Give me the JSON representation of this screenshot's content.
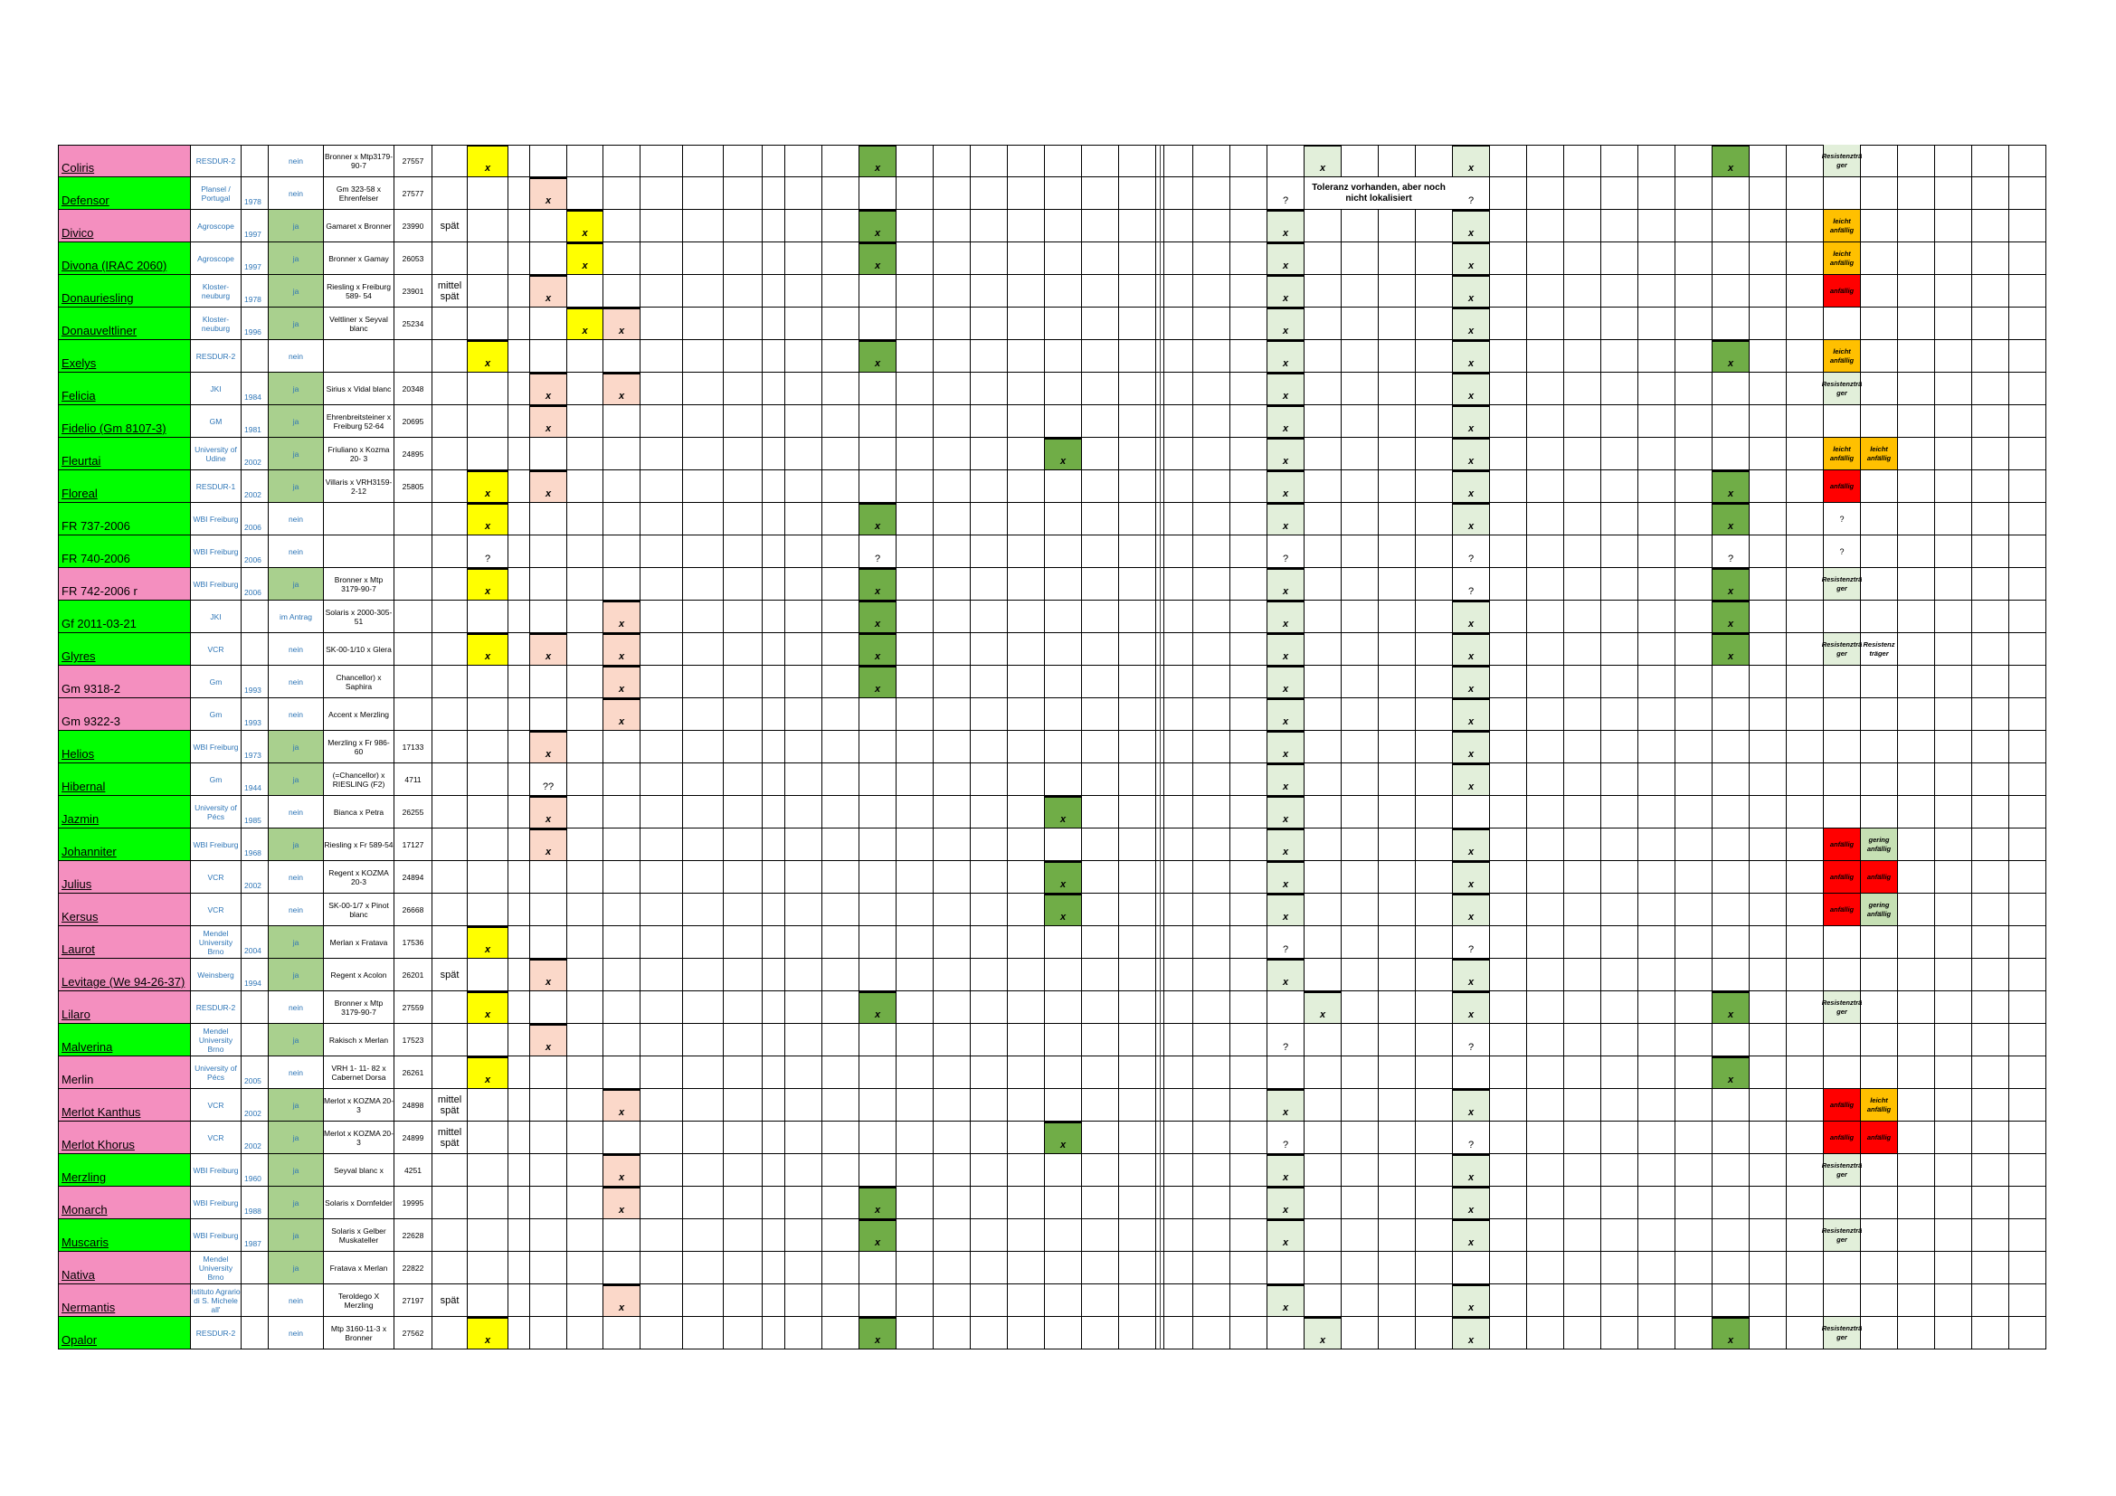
{
  "colors": {
    "pink": "#f48fbf",
    "green": "#00ff00",
    "lightgreen": "#a9d08e",
    "yellow": "#ffff00",
    "peach": "#fbd8c9",
    "midgreen": "#70ad47",
    "pale": "#e2efda",
    "orange": "#ffc000",
    "red": "#ff0000",
    "sage": "#c6e0b4"
  },
  "note": "Toleranz vorhanden, aber noch nicht lokalisiert",
  "rows": [
    {
      "name": "Coliris",
      "color": "pink",
      "org": "RESDUR-2",
      "year": "",
      "ja": "nein",
      "parent": "Bronner x Mtp3179-90-7",
      "num": "27557",
      "late": "",
      "c": {
        "yellow": "x",
        "mid1": "x",
        "pale1": "x",
        "pale2": "x",
        "mid2": "x"
      },
      "r1": "Resistenzträ ger",
      "r1c": "pale"
    },
    {
      "name": "Defensor",
      "color": "green",
      "org": "Plansel / Portugal",
      "year": "1978",
      "ja": "nein",
      "parent": "Gm 323-58 x Ehrenfelser",
      "num": "27577",
      "late": "",
      "c": {
        "peach1": "x",
        "q1": "?",
        "q2": "?"
      },
      "note": true
    },
    {
      "name": "Divico",
      "color": "pink",
      "org": "Agroscope",
      "year": "1997",
      "ja": "ja",
      "parent": "Gamaret x Bronner",
      "num": "23990",
      "late": "spät",
      "c": {
        "yellow2": "x",
        "mid1": "x",
        "pale0": "x",
        "pale2": "x"
      },
      "r1": "leicht anfällig",
      "r1c": "orange"
    },
    {
      "name": "Divona (IRAC 2060)",
      "color": "green",
      "org": "Agroscope",
      "year": "1997",
      "ja": "ja",
      "parent": "Bronner x Gamay",
      "num": "26053",
      "late": "",
      "c": {
        "yellow2": "x",
        "mid1": "x",
        "pale0": "x",
        "pale2": "x"
      },
      "r1": "leicht anfällig",
      "r1c": "orange"
    },
    {
      "name": "Donauriesling",
      "color": "green",
      "org": "Kloster- neuburg",
      "year": "1978",
      "ja": "ja",
      "parent": "Riesling x Freiburg 589- 54",
      "num": "23901",
      "late": "mittel spät",
      "c": {
        "peach1": "x",
        "pale0": "x",
        "pale2": "x"
      },
      "r1": "anfällig",
      "r1c": "red"
    },
    {
      "name": "Donauveltliner",
      "color": "green",
      "org": "Kloster- neuburg",
      "year": "1996",
      "ja": "ja",
      "parent": "Veltliner x Seyval blanc",
      "num": "25234",
      "late": "",
      "c": {
        "yellow2": "x",
        "peach2": "x",
        "pale0": "x",
        "pale2": "x"
      }
    },
    {
      "name": "Exelys",
      "color": "green",
      "org": "RESDUR-2",
      "year": "",
      "ja": "nein",
      "parent": "",
      "num": "",
      "late": "",
      "c": {
        "yellow": "x",
        "mid1": "x",
        "pale0": "x",
        "pale2": "x",
        "mid2": "x"
      },
      "r1": "leicht anfällig",
      "r1c": "orange"
    },
    {
      "name": "Felicia",
      "color": "green",
      "org": "JKI",
      "year": "1984",
      "ja": "ja",
      "parent": "Sirius x Vidal blanc",
      "num": "20348",
      "late": "",
      "c": {
        "peach1": "x",
        "peach2": "x",
        "pale0": "x",
        "pale2": "x"
      },
      "r1": "Resistenzträ ger",
      "r1c": "pale"
    },
    {
      "name": "Fidelio (Gm 8107-3)",
      "color": "green",
      "org": "GM",
      "year": "1981",
      "ja": "ja",
      "parent": "Ehrenbreitsteiner x Freiburg 52-64",
      "num": "20695",
      "late": "",
      "c": {
        "peach1": "x",
        "pale0": "x",
        "pale2": "x"
      }
    },
    {
      "name": "Fleurtai",
      "color": "green",
      "org": "University of Udine",
      "year": "2002",
      "ja": "ja",
      "parent": "Friuliano x Kozma 20- 3",
      "num": "24895",
      "late": "",
      "c": {
        "mid3": "x",
        "pale0": "x",
        "pale2": "x"
      },
      "r1": "leicht anfällig",
      "r1c": "orange",
      "r2": "leicht anfällig",
      "r2c": "orange"
    },
    {
      "name": "Floreal",
      "color": "green",
      "org": "RESDUR-1",
      "year": "2002",
      "ja": "ja",
      "parent": "Villaris x VRH3159-2-12",
      "num": "25805",
      "late": "",
      "c": {
        "yellow": "x",
        "peach1": "x",
        "pale0": "x",
        "pale2": "x",
        "mid2": "x"
      },
      "r1": "anfällig",
      "r1c": "red"
    },
    {
      "name": "FR 737-2006",
      "color": "green",
      "org": "WBI Freiburg",
      "year": "2006",
      "ja": "nein",
      "parent": "",
      "num": "",
      "late": "",
      "plain": true,
      "c": {
        "yellow": "x",
        "mid1": "x",
        "pale0": "x",
        "pale2": "x",
        "mid2": "x"
      },
      "r1": "?",
      "r1c": "none"
    },
    {
      "name": "FR 740-2006",
      "color": "green",
      "org": "WBI Freiburg",
      "year": "2006",
      "ja": "nein",
      "parent": "",
      "num": "",
      "late": "",
      "plain": true,
      "c": {
        "qy": "?",
        "qm": "?",
        "q1": "?",
        "q2": "?",
        "q3": "?"
      },
      "r1": "?",
      "r1c": "none"
    },
    {
      "name": "FR 742-2006 r",
      "color": "pink",
      "org": "WBI Freiburg",
      "year": "2006",
      "ja": "ja",
      "parent": "Bronner x Mtp 3179-90-7",
      "num": "",
      "late": "",
      "plain": true,
      "c": {
        "yellow": "x",
        "mid1": "x",
        "pale0": "x",
        "q2": "?",
        "mid2": "x"
      },
      "r1": "Resistenzträ ger",
      "r1c": "pale"
    },
    {
      "name": "Gf 2011-03-21",
      "color": "green",
      "org": "JKI",
      "year": "",
      "ja": "im Antrag",
      "parent": "Solaris x 2000-305-51",
      "num": "",
      "late": "",
      "plain": true,
      "c": {
        "peach2": "x",
        "mid1": "x",
        "pale0": "x",
        "pale2": "x",
        "mid2": "x"
      }
    },
    {
      "name": "Glyres",
      "color": "green",
      "org": "VCR",
      "year": "",
      "ja": "nein",
      "parent": "SK-00-1/10 x Glera",
      "num": "",
      "late": "",
      "c": {
        "yellow": "x",
        "peach1": "x",
        "peach2": "x",
        "mid1": "x",
        "pale0": "x",
        "pale2": "x",
        "mid2": "x"
      },
      "r1": "Resistenzträ ger",
      "r1c": "pale",
      "r2": "Resistenz träger",
      "r2c": "none"
    },
    {
      "name": "Gm 9318-2",
      "color": "pink",
      "org": "Gm",
      "year": "1993",
      "ja": "nein",
      "parent": "Chancellor) x Saphira",
      "num": "",
      "late": "",
      "plain": true,
      "c": {
        "peach2": "x",
        "mid1": "x",
        "pale0": "x",
        "pale2": "x"
      }
    },
    {
      "name": "Gm 9322-3",
      "color": "pink",
      "org": "Gm",
      "year": "1993",
      "ja": "nein",
      "parent": "Accent x   Merzling",
      "num": "",
      "late": "",
      "plain": true,
      "c": {
        "peach2": "x",
        "pale0": "x",
        "pale2": "x"
      }
    },
    {
      "name": "Helios",
      "color": "green",
      "org": "WBI Freiburg",
      "year": "1973",
      "ja": "ja",
      "parent": "Merzling x Fr 986- 60",
      "num": "17133",
      "late": "",
      "c": {
        "peach1": "x",
        "pale0": "x",
        "pale2": "x"
      }
    },
    {
      "name": "Hibernal",
      "color": "green",
      "org": "Gm",
      "year": "1944",
      "ja": "ja",
      "parent": "(=Chancellor) x RIESLING (F2)",
      "num": "4711",
      "late": "",
      "c": {
        "qq": "??",
        "pale0": "x",
        "pale2": "x"
      }
    },
    {
      "name": "Jazmin",
      "color": "green",
      "org": "University of Pécs",
      "year": "1985",
      "ja": "nein",
      "parent": "Bianca x Petra",
      "num": "26255",
      "late": "",
      "c": {
        "peach1": "x",
        "mid3": "x",
        "pale0": "x"
      }
    },
    {
      "name": "Johanniter",
      "color": "green",
      "org": "WBI Freiburg",
      "year": "1968",
      "ja": "ja",
      "parent": "Riesling x Fr 589-54",
      "num": "17127",
      "late": "",
      "c": {
        "peach1": "x",
        "pale0": "x",
        "pale2": "x"
      },
      "r1": "anfällig",
      "r1c": "red",
      "r2": "gering anfällig",
      "r2c": "sage"
    },
    {
      "name": "Julius",
      "color": "pink",
      "org": "VCR",
      "year": "2002",
      "ja": "nein",
      "parent": "Regent x KOZMA 20-3",
      "num": "24894",
      "late": "",
      "c": {
        "mid3": "x",
        "pale0": "x",
        "pale2": "x"
      },
      "r1": "anfällig",
      "r1c": "red",
      "r2": "anfällig",
      "r2c": "red"
    },
    {
      "name": "Kersus",
      "color": "pink",
      "org": "VCR",
      "year": "",
      "ja": "nein",
      "parent": "SK-00-1/7 x Pinot blanc",
      "num": "26668",
      "late": "",
      "c": {
        "mid3": "x",
        "pale0": "x",
        "pale2": "x"
      },
      "r1": "anfällig",
      "r1c": "red",
      "r2": "gering anfällig",
      "r2c": "sage"
    },
    {
      "name": "Laurot",
      "color": "pink",
      "org": "Mendel University Brno",
      "year": "2004",
      "ja": "ja",
      "parent": "Merlan x Fratava",
      "num": "17536",
      "late": "",
      "c": {
        "yellow": "x",
        "q1": "?",
        "q2": "?"
      }
    },
    {
      "name": "Levitage (We 94-26-37)",
      "color": "pink",
      "org": "Weinsberg",
      "year": "1994",
      "ja": "ja",
      "parent": "Regent x Acolon",
      "num": "26201",
      "late": "spät",
      "c": {
        "peach1": "x",
        "pale0": "x",
        "pale2": "x"
      }
    },
    {
      "name": "Lilaro",
      "color": "pink",
      "org": "RESDUR-2",
      "year": "",
      "ja": "nein",
      "parent": "Bronner x Mtp 3179-90-7",
      "num": "27559",
      "late": "",
      "c": {
        "yellow": "x",
        "mid1": "x",
        "pale1": "x",
        "pale2": "x",
        "mid2": "x"
      },
      "r1": "Resistenzträ ger",
      "r1c": "pale"
    },
    {
      "name": "Malverina",
      "color": "green",
      "org": "Mendel University Brno",
      "year": "",
      "ja": "ja",
      "parent": "Rakisch x Merlan",
      "num": "17523",
      "late": "",
      "c": {
        "peach1": "x",
        "q1": "?",
        "q2": "?"
      }
    },
    {
      "name": "Merlin",
      "color": "pink",
      "org": "University of Pécs",
      "year": "2005",
      "ja": "nein",
      "parent": "VRH 1- 11- 82 x Cabernet Dorsa",
      "num": "26261",
      "late": "",
      "plain": true,
      "c": {
        "yellow": "x",
        "mid2": "x"
      }
    },
    {
      "name": "Merlot Kanthus",
      "color": "pink",
      "org": "VCR",
      "year": "2002",
      "ja": "ja",
      "parent": "Merlot x KOZMA 20-3",
      "num": "24898",
      "late": "mittel spät",
      "c": {
        "peach2": "x",
        "pale0": "x",
        "pale2": "x"
      },
      "r1": "anfällig",
      "r1c": "red",
      "r2": "leicht anfällig",
      "r2c": "orange"
    },
    {
      "name": "Merlot Khorus",
      "color": "pink",
      "org": "VCR",
      "year": "2002",
      "ja": "ja",
      "parent": "Merlot x KOZMA 20-3",
      "num": "24899",
      "late": "mittel spät",
      "c": {
        "mid3": "x",
        "q1": "?",
        "q2": "?"
      },
      "r1": "anfällig",
      "r1c": "red",
      "r2": "anfällig",
      "r2c": "red"
    },
    {
      "name": "Merzling",
      "color": "green",
      "org": "WBI Freiburg",
      "year": "1960",
      "ja": "ja",
      "parent": "Seyval blanc x",
      "num": "4251",
      "late": "",
      "c": {
        "peach2": "x",
        "pale0": "x",
        "pale2": "x"
      },
      "r1": "Resistenzträ ger",
      "r1c": "pale"
    },
    {
      "name": "Monarch",
      "color": "pink",
      "org": "WBI Freiburg",
      "year": "1988",
      "ja": "ja",
      "parent": "Solaris x Dornfelder",
      "num": "19995",
      "late": "",
      "c": {
        "peach2": "x",
        "mid1": "x",
        "pale0": "x",
        "pale2": "x"
      }
    },
    {
      "name": "Muscaris",
      "color": "green",
      "org": "WBI Freiburg",
      "year": "1987",
      "ja": "ja",
      "parent": "Solaris x  Gelber Muskateller",
      "num": "22628",
      "late": "",
      "c": {
        "mid1": "x",
        "pale0": "x",
        "pale2": "x"
      },
      "r1": "Resistenzträ ger",
      "r1c": "pale"
    },
    {
      "name": "Nativa",
      "color": "pink",
      "org": "Mendel University Brno",
      "year": "",
      "ja": "ja",
      "parent": "Fratava x Merlan",
      "num": "22822",
      "late": "",
      "c": {}
    },
    {
      "name": "Nermantis",
      "color": "pink",
      "org": "Istituto Agrario di S. Michele all'",
      "year": "",
      "ja": "nein",
      "parent": "Teroldego X Merzling",
      "num": "27197",
      "late": "spät",
      "c": {
        "peach2": "x",
        "pale0": "x",
        "pale2": "x"
      }
    },
    {
      "name": "Opalor",
      "color": "green",
      "org": "RESDUR-2",
      "year": "",
      "ja": "nein",
      "parent": "Mtp 3160-11-3 x Bronner",
      "num": "27562",
      "late": "",
      "c": {
        "yellow": "x",
        "mid1": "x",
        "pale1": "x",
        "pale2": "x",
        "mid2": "x"
      },
      "r1": "Resistenzträ ger",
      "r1c": "pale"
    }
  ]
}
